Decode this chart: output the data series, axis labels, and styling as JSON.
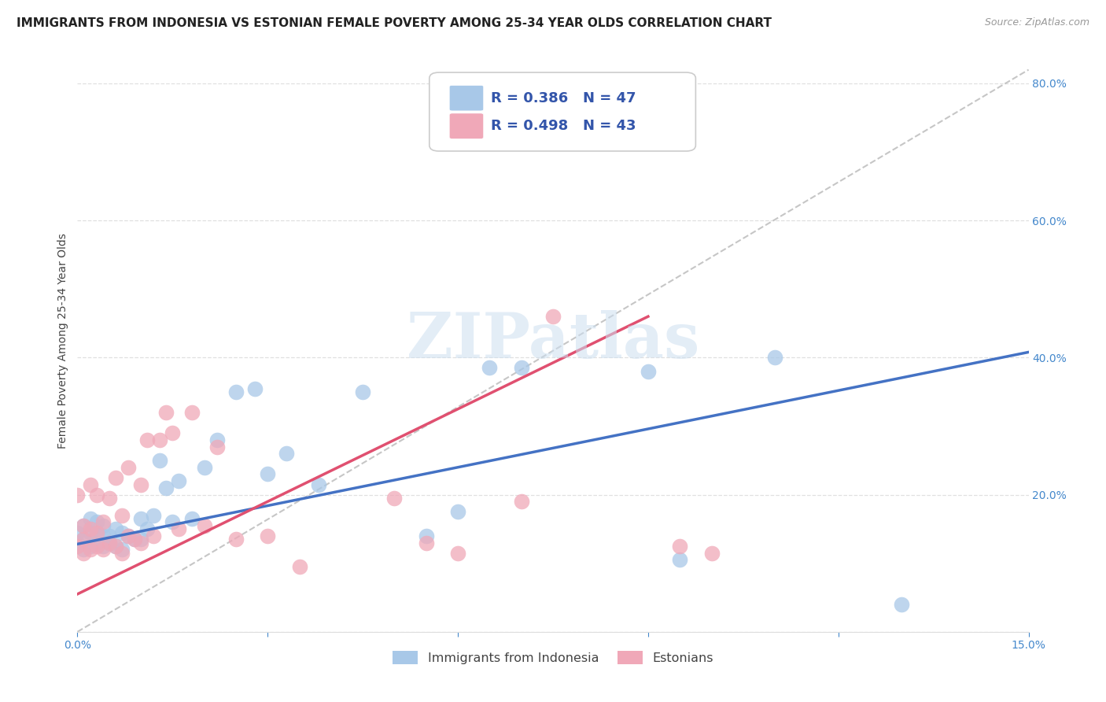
{
  "title": "IMMIGRANTS FROM INDONESIA VS ESTONIAN FEMALE POVERTY AMONG 25-34 YEAR OLDS CORRELATION CHART",
  "source": "Source: ZipAtlas.com",
  "ylabel": "Female Poverty Among 25-34 Year Olds",
  "xlim": [
    0.0,
    0.15
  ],
  "ylim": [
    0.0,
    0.85
  ],
  "xticks": [
    0.0,
    0.03,
    0.06,
    0.09,
    0.12,
    0.15
  ],
  "xticklabels": [
    "0.0%",
    "",
    "",
    "",
    "",
    "15.0%"
  ],
  "yticks_right": [
    0.0,
    0.2,
    0.4,
    0.6,
    0.8
  ],
  "yticklabels_right": [
    "",
    "20.0%",
    "40.0%",
    "60.0%",
    "80.0%"
  ],
  "blue_color": "#a8c8e8",
  "pink_color": "#f0a8b8",
  "blue_line_color": "#4472c4",
  "pink_line_color": "#e05070",
  "R_blue": 0.386,
  "N_blue": 47,
  "R_pink": 0.498,
  "N_pink": 43,
  "legend_label_blue": "Immigrants from Indonesia",
  "legend_label_pink": "Estonians",
  "watermark": "ZIPatlas",
  "blue_scatter_x": [
    0.0,
    0.0,
    0.001,
    0.001,
    0.001,
    0.002,
    0.002,
    0.002,
    0.003,
    0.003,
    0.003,
    0.004,
    0.004,
    0.004,
    0.005,
    0.005,
    0.006,
    0.006,
    0.007,
    0.007,
    0.008,
    0.009,
    0.01,
    0.01,
    0.011,
    0.012,
    0.013,
    0.014,
    0.015,
    0.016,
    0.018,
    0.02,
    0.022,
    0.025,
    0.028,
    0.03,
    0.033,
    0.038,
    0.045,
    0.055,
    0.06,
    0.065,
    0.07,
    0.09,
    0.095,
    0.11,
    0.13
  ],
  "blue_scatter_y": [
    0.13,
    0.145,
    0.12,
    0.135,
    0.155,
    0.125,
    0.145,
    0.165,
    0.13,
    0.145,
    0.16,
    0.125,
    0.14,
    0.155,
    0.13,
    0.14,
    0.125,
    0.15,
    0.12,
    0.145,
    0.14,
    0.135,
    0.135,
    0.165,
    0.15,
    0.17,
    0.25,
    0.21,
    0.16,
    0.22,
    0.165,
    0.24,
    0.28,
    0.35,
    0.355,
    0.23,
    0.26,
    0.215,
    0.35,
    0.14,
    0.175,
    0.385,
    0.385,
    0.38,
    0.105,
    0.4,
    0.04
  ],
  "pink_scatter_x": [
    0.0,
    0.0,
    0.001,
    0.001,
    0.001,
    0.002,
    0.002,
    0.002,
    0.003,
    0.003,
    0.003,
    0.004,
    0.004,
    0.005,
    0.005,
    0.006,
    0.006,
    0.007,
    0.007,
    0.008,
    0.008,
    0.009,
    0.01,
    0.01,
    0.011,
    0.012,
    0.013,
    0.014,
    0.015,
    0.016,
    0.018,
    0.02,
    0.022,
    0.025,
    0.03,
    0.035,
    0.05,
    0.055,
    0.06,
    0.07,
    0.075,
    0.095,
    0.1
  ],
  "pink_scatter_y": [
    0.125,
    0.2,
    0.115,
    0.135,
    0.155,
    0.12,
    0.15,
    0.215,
    0.125,
    0.145,
    0.2,
    0.12,
    0.16,
    0.13,
    0.195,
    0.125,
    0.225,
    0.115,
    0.17,
    0.14,
    0.24,
    0.135,
    0.13,
    0.215,
    0.28,
    0.14,
    0.28,
    0.32,
    0.29,
    0.15,
    0.32,
    0.155,
    0.27,
    0.135,
    0.14,
    0.095,
    0.195,
    0.13,
    0.115,
    0.19,
    0.46,
    0.125,
    0.115
  ],
  "blue_line_x0": 0.0,
  "blue_line_y0": 0.128,
  "blue_line_x1": 0.15,
  "blue_line_y1": 0.408,
  "pink_line_x0": 0.0,
  "pink_line_y0": 0.055,
  "pink_line_x1": 0.09,
  "pink_line_y1": 0.46,
  "ref_line_x0": 0.0,
  "ref_line_y0": 0.0,
  "ref_line_x1": 0.15,
  "ref_line_y1": 0.82,
  "title_fontsize": 11,
  "axis_label_fontsize": 10,
  "tick_fontsize": 10,
  "legend_fontsize": 13
}
